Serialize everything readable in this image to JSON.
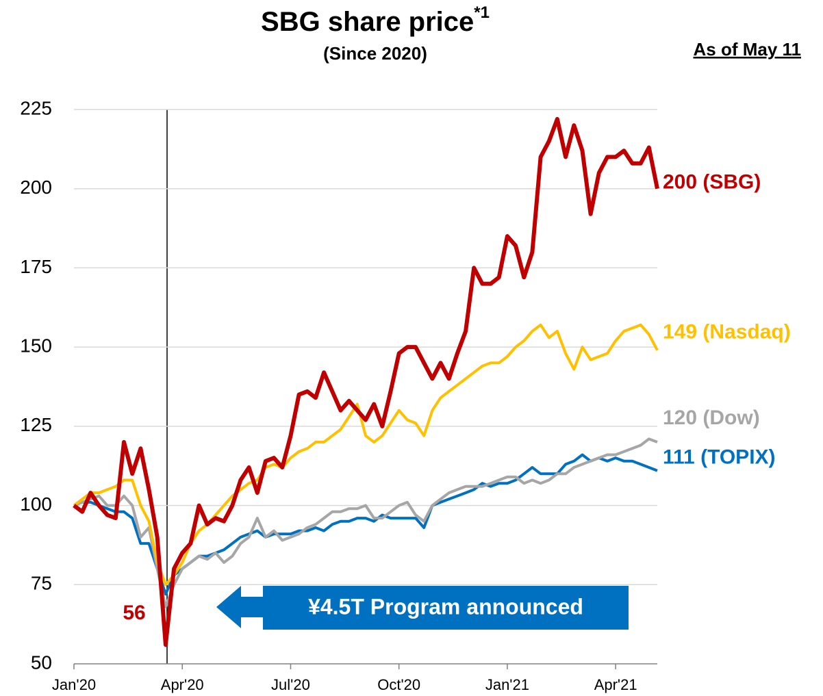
{
  "chart_data": {
    "type": "line",
    "title": "SBG share price",
    "title_note": "*1",
    "subtitle": "(Since 2020)",
    "as_of": "As of May 11",
    "annotations": {
      "low": "56",
      "event": "¥4.5T Program announced"
    },
    "categories": [
      "Jan'20",
      null,
      null,
      null,
      null,
      null,
      null,
      null,
      null,
      null,
      null,
      null,
      null,
      "Apr'20",
      null,
      null,
      null,
      null,
      null,
      null,
      null,
      null,
      null,
      null,
      null,
      null,
      "Jul'20",
      null,
      null,
      null,
      null,
      null,
      null,
      null,
      null,
      null,
      null,
      null,
      null,
      "Oct'20",
      null,
      null,
      null,
      null,
      null,
      null,
      null,
      null,
      null,
      null,
      null,
      null,
      "Jan'21",
      null,
      null,
      null,
      null,
      null,
      null,
      null,
      null,
      null,
      null,
      null,
      null,
      "Apr'21",
      null,
      null,
      null,
      null,
      null
    ],
    "series": [
      {
        "label": "200 (SBG)",
        "color": "#c00000",
        "values": [
          100,
          98,
          104,
          100,
          97,
          96,
          120,
          110,
          118,
          105,
          90,
          56,
          80,
          85,
          88,
          100,
          94,
          96,
          95,
          100,
          108,
          112,
          104,
          114,
          115,
          112,
          122,
          135,
          136,
          134,
          142,
          136,
          130,
          133,
          130,
          127,
          132,
          125,
          136,
          148,
          150,
          150,
          145,
          140,
          145,
          140,
          148,
          155,
          175,
          170,
          170,
          172,
          185,
          182,
          172,
          180,
          210,
          215,
          222,
          210,
          220,
          212,
          192,
          205,
          210,
          210,
          212,
          208,
          208,
          213,
          200
        ]
      },
      {
        "label": "149 (Nasdaq)",
        "color": "#ffc000",
        "values": [
          100,
          102,
          104,
          104,
          105,
          106,
          108,
          108,
          100,
          95,
          82,
          75,
          78,
          82,
          88,
          92,
          94,
          97,
          100,
          103,
          105,
          107,
          108,
          112,
          113,
          112,
          115,
          117,
          118,
          120,
          120,
          122,
          124,
          128,
          132,
          122,
          120,
          122,
          126,
          130,
          127,
          126,
          122,
          130,
          134,
          136,
          138,
          140,
          142,
          144,
          145,
          145,
          147,
          150,
          152,
          155,
          157,
          153,
          155,
          148,
          143,
          150,
          146,
          147,
          148,
          152,
          155,
          156,
          157,
          154,
          149
        ]
      },
      {
        "label": "120 (Dow)",
        "color": "#a6a6a6",
        "values": [
          100,
          101,
          102,
          103,
          100,
          100,
          103,
          100,
          90,
          93,
          80,
          68,
          75,
          80,
          82,
          84,
          83,
          85,
          82,
          84,
          88,
          90,
          96,
          90,
          92,
          89,
          90,
          91,
          93,
          94,
          96,
          98,
          98,
          99,
          99,
          100,
          96,
          96,
          98,
          100,
          101,
          97,
          95,
          100,
          102,
          104,
          105,
          106,
          106,
          106,
          107,
          108,
          109,
          109,
          107,
          108,
          107,
          108,
          110,
          110,
          112,
          113,
          114,
          115,
          116,
          116,
          117,
          118,
          119,
          121,
          120
        ]
      },
      {
        "label": "111 (TOPIX)",
        "color": "#0070c0",
        "values": [
          100,
          101,
          101,
          100,
          99,
          98,
          98,
          96,
          88,
          88,
          80,
          72,
          78,
          80,
          82,
          84,
          84,
          85,
          86,
          88,
          90,
          91,
          92,
          90,
          91,
          91,
          91,
          92,
          92,
          93,
          92,
          94,
          95,
          95,
          96,
          96,
          95,
          97,
          96,
          96,
          96,
          96,
          93,
          100,
          101,
          102,
          103,
          104,
          105,
          107,
          106,
          107,
          107,
          108,
          110,
          112,
          110,
          110,
          110,
          113,
          114,
          116,
          114,
          115,
          114,
          115,
          114,
          114,
          113,
          112,
          111
        ]
      }
    ],
    "ylim": [
      50,
      225
    ],
    "yticks": [
      50,
      75,
      100,
      125,
      150,
      175,
      200,
      225
    ],
    "grid": true
  }
}
